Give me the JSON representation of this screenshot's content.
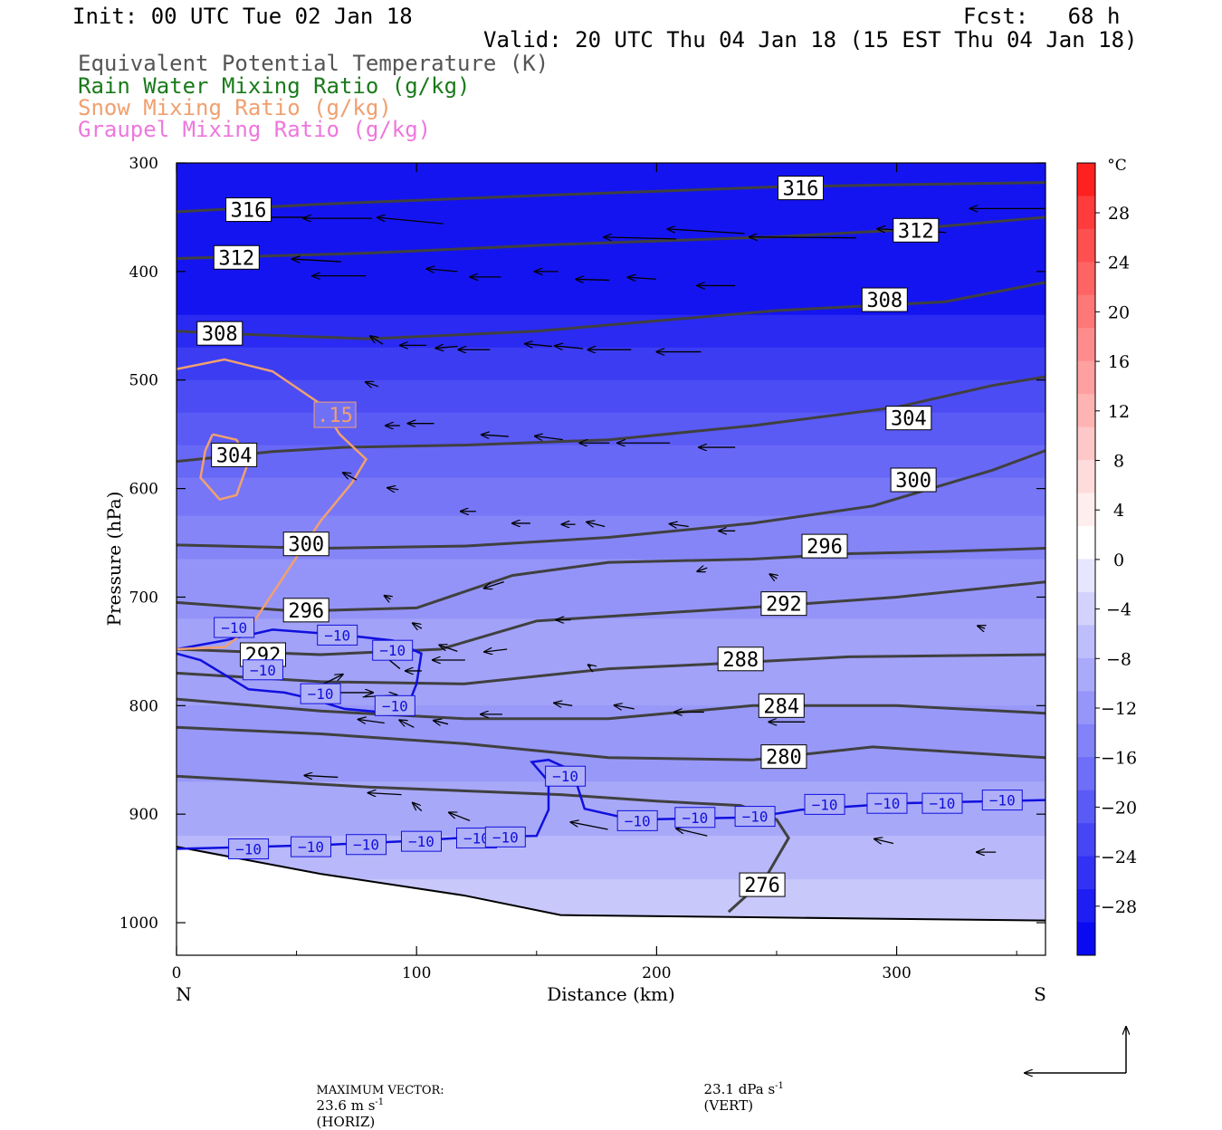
{
  "header": {
    "init": "Init: 00 UTC Tue 02 Jan 18",
    "fcst": "Fcst:   68 h",
    "valid": "Valid: 20 UTC Thu 04 Jan 18 (15 EST Thu 04 Jan 18)",
    "fields": [
      {
        "label": "Equivalent Potential Temperature (K)",
        "color": "#555555"
      },
      {
        "label": "Rain Water Mixing Ratio (g/kg)",
        "color": "#1a7a1a"
      },
      {
        "label": "Snow Mixing Ratio (g/kg)",
        "color": "#f0a070"
      },
      {
        "label": "Graupel Mixing Ratio (g/kg)",
        "color": "#ee77dd"
      }
    ]
  },
  "chart_data": {
    "type": "contour",
    "xlabel": "Distance (km)",
    "ylabel": "Pressure (hPa)",
    "xlim": [
      0,
      362
    ],
    "ylim": [
      1030,
      300
    ],
    "x_ticks": [
      "0",
      "100",
      "200",
      "300"
    ],
    "y_ticks": [
      "300",
      "400",
      "500",
      "600",
      "700",
      "800",
      "900",
      "1000"
    ],
    "left_end": "N",
    "right_end": "S",
    "colorbar": {
      "unit": "°C",
      "labels": [
        "28",
        "24",
        "20",
        "16",
        "12",
        "8",
        "4",
        "0",
        "−4",
        "−8",
        "−12",
        "−16",
        "−20",
        "−24",
        "−28"
      ]
    },
    "theta_e_contours": [
      {
        "level": "316",
        "points": [
          [
            0,
            345
          ],
          [
            60,
            338
          ],
          [
            150,
            330
          ],
          [
            250,
            322
          ],
          [
            300,
            320
          ],
          [
            362,
            318
          ]
        ],
        "labels": [
          [
            30,
            343
          ],
          [
            260,
            323
          ]
        ]
      },
      {
        "level": "312",
        "points": [
          [
            0,
            388
          ],
          [
            80,
            383
          ],
          [
            160,
            375
          ],
          [
            250,
            368
          ],
          [
            300,
            362
          ],
          [
            362,
            350
          ]
        ],
        "labels": [
          [
            25,
            387
          ],
          [
            308,
            362
          ]
        ]
      },
      {
        "level": "308",
        "points": [
          [
            0,
            455
          ],
          [
            30,
            458
          ],
          [
            80,
            462
          ],
          [
            150,
            455
          ],
          [
            250,
            436
          ],
          [
            320,
            428
          ],
          [
            362,
            410
          ]
        ],
        "labels": [
          [
            18,
            457
          ],
          [
            295,
            426
          ]
        ]
      },
      {
        "level": "304",
        "points": [
          [
            0,
            575
          ],
          [
            40,
            566
          ],
          [
            70,
            562
          ],
          [
            120,
            560
          ],
          [
            180,
            555
          ],
          [
            240,
            542
          ],
          [
            300,
            525
          ],
          [
            340,
            505
          ],
          [
            362,
            497
          ]
        ],
        "labels": [
          [
            24,
            569
          ],
          [
            305,
            535
          ]
        ]
      },
      {
        "level": "300",
        "points": [
          [
            0,
            652
          ],
          [
            60,
            655
          ],
          [
            120,
            653
          ],
          [
            180,
            645
          ],
          [
            240,
            632
          ],
          [
            290,
            616
          ],
          [
            340,
            583
          ],
          [
            362,
            565
          ]
        ],
        "labels": [
          [
            54,
            651
          ],
          [
            307,
            592
          ]
        ]
      },
      {
        "level": "296",
        "points": [
          [
            0,
            705
          ],
          [
            50,
            713
          ],
          [
            100,
            710
          ],
          [
            140,
            680
          ],
          [
            180,
            668
          ],
          [
            240,
            665
          ],
          [
            280,
            660
          ],
          [
            320,
            658
          ],
          [
            362,
            655
          ]
        ],
        "labels": [
          [
            54,
            712
          ],
          [
            270,
            653
          ]
        ]
      },
      {
        "level": "292",
        "points": [
          [
            0,
            748
          ],
          [
            60,
            753
          ],
          [
            110,
            748
          ],
          [
            150,
            722
          ],
          [
            200,
            715
          ],
          [
            250,
            708
          ],
          [
            300,
            700
          ],
          [
            362,
            686
          ]
        ],
        "labels": [
          [
            36,
            753
          ],
          [
            253,
            706
          ]
        ]
      },
      {
        "level": "288",
        "points": [
          [
            0,
            770
          ],
          [
            60,
            778
          ],
          [
            120,
            780
          ],
          [
            180,
            766
          ],
          [
            220,
            762
          ],
          [
            280,
            755
          ],
          [
            362,
            753
          ]
        ],
        "labels": [
          [
            235,
            757
          ]
        ]
      },
      {
        "level": "284",
        "points": [
          [
            0,
            794
          ],
          [
            60,
            805
          ],
          [
            120,
            812
          ],
          [
            180,
            812
          ],
          [
            240,
            800
          ],
          [
            300,
            800
          ],
          [
            362,
            807
          ]
        ],
        "labels": [
          [
            252,
            800
          ]
        ]
      },
      {
        "level": "280",
        "points": [
          [
            0,
            820
          ],
          [
            60,
            826
          ],
          [
            120,
            835
          ],
          [
            180,
            848
          ],
          [
            240,
            850
          ],
          [
            290,
            838
          ],
          [
            362,
            848
          ]
        ],
        "labels": [
          [
            253,
            847
          ]
        ]
      },
      {
        "level": "276",
        "points": [
          [
            0,
            865
          ],
          [
            80,
            875
          ],
          [
            160,
            882
          ],
          [
            200,
            888
          ],
          [
            235,
            892
          ],
          [
            250,
            905
          ],
          [
            255,
            922
          ],
          [
            245,
            960
          ],
          [
            230,
            990
          ]
        ],
        "labels": [
          [
            244,
            965
          ]
        ]
      }
    ],
    "temperature_minus10_contour": {
      "label": "−10",
      "color": "#1010dd",
      "points": [
        [
          0,
          748
        ],
        [
          20,
          740
        ],
        [
          40,
          730
        ],
        [
          70,
          735
        ],
        [
          90,
          740
        ],
        [
          102,
          752
        ],
        [
          100,
          780
        ],
        [
          95,
          808
        ],
        [
          70,
          803
        ],
        [
          55,
          793
        ],
        [
          45,
          788
        ],
        [
          30,
          785
        ],
        [
          10,
          758
        ],
        [
          0,
          752
        ]
      ],
      "labels": [
        [
          24,
          728
        ],
        [
          67,
          735
        ],
        [
          90,
          749
        ],
        [
          36,
          767
        ],
        [
          91,
          800
        ],
        [
          60,
          789
        ]
      ],
      "lower_points": [
        [
          0,
          932
        ],
        [
          35,
          930
        ],
        [
          65,
          928
        ],
        [
          95,
          925
        ],
        [
          125,
          921
        ],
        [
          150,
          920
        ],
        [
          155,
          896
        ],
        [
          155,
          870
        ],
        [
          148,
          852
        ],
        [
          155,
          850
        ],
        [
          165,
          860
        ],
        [
          170,
          895
        ],
        [
          190,
          905
        ],
        [
          240,
          903
        ],
        [
          260,
          896
        ],
        [
          300,
          890
        ],
        [
          362,
          887
        ]
      ],
      "lower_labels": [
        [
          30,
          932
        ],
        [
          56,
          930
        ],
        [
          79,
          928
        ],
        [
          102,
          925
        ],
        [
          125,
          922
        ],
        [
          137,
          921
        ],
        [
          162,
          865
        ],
        [
          192,
          906
        ],
        [
          216,
          903
        ],
        [
          241,
          902
        ],
        [
          270,
          891
        ],
        [
          296,
          890
        ],
        [
          319,
          890
        ],
        [
          344,
          887
        ]
      ]
    },
    "snow_contour": {
      "label": ".15",
      "color": "#f0a070",
      "outer": [
        [
          0,
          490
        ],
        [
          20,
          481
        ],
        [
          40,
          492
        ],
        [
          60,
          522
        ],
        [
          68,
          550
        ],
        [
          79,
          573
        ],
        [
          73,
          595
        ],
        [
          60,
          630
        ],
        [
          45,
          680
        ],
        [
          30,
          730
        ],
        [
          20,
          746
        ],
        [
          0,
          748
        ]
      ],
      "outer_label": [
        66,
        532
      ],
      "inner": [
        [
          15,
          550
        ],
        [
          25,
          555
        ],
        [
          30,
          575
        ],
        [
          25,
          606
        ],
        [
          18,
          610
        ],
        [
          10,
          590
        ],
        [
          12,
          565
        ],
        [
          15,
          550
        ]
      ]
    },
    "wind_vectors": [
      [
        84,
        350,
        -84,
        0
      ],
      [
        126,
        351,
        -76,
        0
      ],
      [
        172,
        356,
        -73,
        7
      ],
      [
        322,
        370,
        -80,
        2
      ],
      [
        366,
        365,
        -85,
        5
      ],
      [
        438,
        369,
        -118,
        1
      ],
      [
        496,
        364,
        -76,
        4
      ],
      [
        561,
        342,
        -85,
        0
      ],
      [
        106,
        391,
        -54,
        3
      ],
      [
        122,
        404,
        -59,
        0
      ],
      [
        181,
        400,
        -34,
        3
      ],
      [
        209,
        405,
        -34,
        0
      ],
      [
        246,
        400,
        -26,
        0
      ],
      [
        279,
        408,
        -37,
        1
      ],
      [
        309,
        407,
        -31,
        2
      ],
      [
        360,
        413,
        -42,
        0
      ],
      [
        133,
        467,
        -14,
        9
      ],
      [
        161,
        468,
        -29,
        0
      ],
      [
        181,
        469,
        -24,
        -2
      ],
      [
        202,
        472,
        -35,
        0
      ],
      [
        242,
        469,
        -30,
        3
      ],
      [
        262,
        471,
        -31,
        3
      ],
      [
        293,
        472,
        -48,
        0
      ],
      [
        338,
        474,
        -49,
        0
      ],
      [
        130,
        506,
        -14,
        5
      ],
      [
        144,
        542,
        -16,
        0
      ],
      [
        166,
        540,
        -29,
        0
      ],
      [
        214,
        552,
        -30,
        2
      ],
      [
        249,
        555,
        -31,
        4
      ],
      [
        279,
        558,
        -33,
        0
      ],
      [
        318,
        558,
        -58,
        0
      ],
      [
        360,
        562,
        -40,
        0
      ],
      [
        116,
        592,
        -15,
        8
      ],
      [
        143,
        601,
        -12,
        2
      ],
      [
        193,
        621,
        -17,
        0
      ],
      [
        228,
        632,
        -20,
        0
      ],
      [
        257,
        633,
        -15,
        0
      ],
      [
        276,
        635,
        -20,
        5
      ],
      [
        330,
        635,
        -21,
        3
      ],
      [
        360,
        639,
        -18,
        0
      ],
      [
        138,
        702,
        -7,
        4
      ],
      [
        158,
        729,
        -10,
        6
      ],
      [
        181,
        750,
        -20,
        7
      ],
      [
        211,
        686,
        -22,
        -7
      ],
      [
        254,
        721,
        -16,
        0
      ],
      [
        342,
        673,
        -11,
        -4
      ],
      [
        387,
        683,
        -8,
        5
      ],
      [
        521,
        729,
        -8,
        3
      ],
      [
        92,
        782,
        26,
        13
      ],
      [
        105,
        788,
        37,
        0
      ],
      [
        120,
        792,
        38,
        2
      ],
      [
        144,
        766,
        -22,
        18
      ],
      [
        158,
        768,
        -18,
        0
      ],
      [
        186,
        758,
        -36,
        0
      ],
      [
        213,
        748,
        -25,
        -3
      ],
      [
        267,
        764,
        -3,
        2
      ],
      [
        134,
        816,
        -29,
        4
      ],
      [
        153,
        820,
        -16,
        8
      ],
      [
        175,
        817,
        -16,
        4
      ],
      [
        210,
        808,
        -24,
        0
      ],
      [
        255,
        800,
        -20,
        3
      ],
      [
        295,
        803,
        -22,
        4
      ],
      [
        340,
        806,
        -33,
        0
      ],
      [
        405,
        815,
        -40,
        0
      ],
      [
        104,
        866,
        -37,
        2
      ],
      [
        145,
        882,
        -37,
        2
      ],
      [
        158,
        897,
        -10,
        9
      ],
      [
        189,
        906,
        -23,
        9
      ],
      [
        278,
        914,
        -41,
        8
      ],
      [
        342,
        920,
        -34,
        8
      ],
      [
        462,
        927,
        -21,
        5
      ],
      [
        528,
        935,
        -21,
        0
      ]
    ]
  },
  "footer": {
    "max_prefix": "MAXIMUM VECTOR:",
    "horiz_value": "23.6 m s",
    "horiz_unit": "(HORIZ)",
    "vert_value": "23.1 dPa s",
    "vert_unit": "(VERT)",
    "exponent": "-1"
  }
}
